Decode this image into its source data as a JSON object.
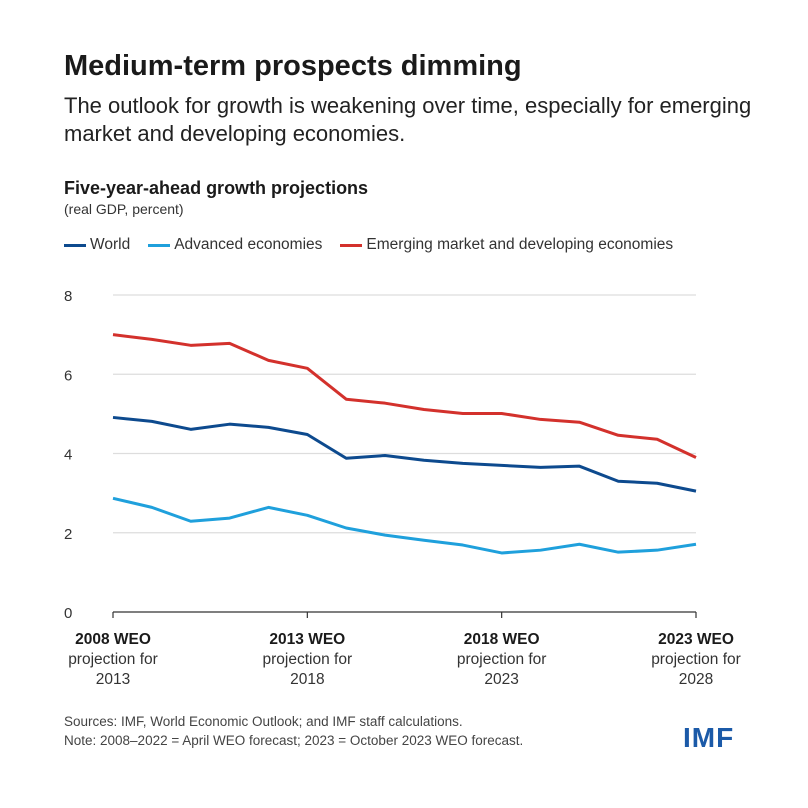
{
  "title": "Medium-term prospects dimming",
  "subtitle": "The outlook for growth is weakening over time, especially for emerging market and developing economies.",
  "footer": {
    "sources": "Sources: IMF, World Economic Outlook; and IMF staff calculations.",
    "note": "Note: 2008–2022 = April WEO forecast; 2023 = October 2023 WEO forecast."
  },
  "logo": "IMF",
  "chart_data": {
    "type": "line",
    "title": "Five-year-ahead growth projections",
    "subtitle": "(real GDP, percent)",
    "x": [
      2008,
      2009,
      2010,
      2011,
      2012,
      2013,
      2014,
      2015,
      2016,
      2017,
      2018,
      2019,
      2020,
      2021,
      2022,
      2023
    ],
    "xticks": [
      {
        "x": 2008,
        "l1": "2008 WEO",
        "l2": "projection for",
        "l3": "2013"
      },
      {
        "x": 2013,
        "l1": "2013 WEO",
        "l2": "projection for",
        "l3": "2018"
      },
      {
        "x": 2018,
        "l1": "2018 WEO",
        "l2": "projection for",
        "l3": "2023"
      },
      {
        "x": 2023,
        "l1": "2023 WEO",
        "l2": "projection for",
        "l3": "2028"
      }
    ],
    "yticks": [
      0,
      2,
      4,
      6,
      8
    ],
    "ylim": [
      0,
      8
    ],
    "grid": true,
    "legend": "top",
    "series": [
      {
        "name": "World",
        "color": "#0d4a8e",
        "values": [
          4.91,
          4.81,
          4.61,
          4.74,
          4.66,
          4.48,
          3.88,
          3.95,
          3.83,
          3.75,
          3.7,
          3.65,
          3.68,
          3.3,
          3.25,
          3.05
        ]
      },
      {
        "name": "Advanced economies",
        "color": "#1fa0dc",
        "values": [
          2.87,
          2.64,
          2.29,
          2.37,
          2.64,
          2.44,
          2.12,
          1.94,
          1.81,
          1.69,
          1.49,
          1.56,
          1.71,
          1.51,
          1.56,
          1.71
        ]
      },
      {
        "name": "Emerging market and developing economies",
        "color": "#d3312c",
        "values": [
          7.0,
          6.88,
          6.73,
          6.78,
          6.35,
          6.15,
          5.37,
          5.27,
          5.11,
          5.01,
          5.01,
          4.86,
          4.79,
          4.46,
          4.36,
          3.9
        ]
      }
    ]
  }
}
